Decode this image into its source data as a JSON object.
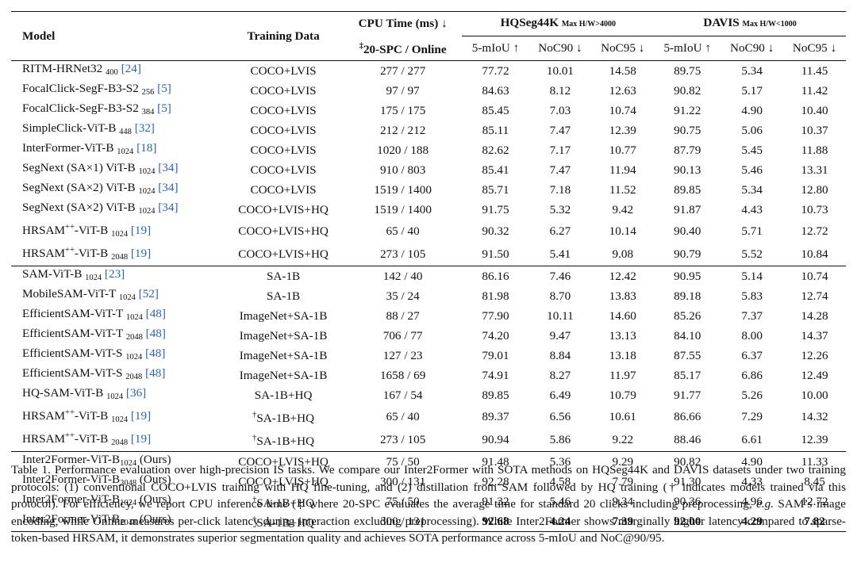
{
  "header": {
    "model": "Model",
    "training_data": "Training Data",
    "cpu_time": "CPU Time (ms) ↓",
    "cpu_sub_mark": "‡",
    "cpu_sub": "20-SPC / Online",
    "hq_name": "HQSeg44K",
    "hq_sub": "Max H/W>4000",
    "davis_name": "DAVIS",
    "davis_sub": "Max H/W<1000",
    "metrics": [
      "5-mIoU ↑",
      "NoC90 ↓",
      "NoC95 ↓",
      "5-mIoU ↑",
      "NoC90 ↓",
      "NoC95 ↓"
    ]
  },
  "groups": [
    {
      "rows": [
        {
          "m": "RITM-HRNet32 ",
          "sub": "400",
          "tail": " ",
          "cite": "[24]",
          "data": "COCO+LVIS",
          "cpu": "277 / 277",
          "v": [
            "77.72",
            "10.01",
            "14.58",
            "89.75",
            "5.34",
            "11.45"
          ]
        },
        {
          "m": "FocalClick-SegF-B3-S2 ",
          "sub": "256",
          "tail": " ",
          "cite": "[5]",
          "data": "COCO+LVIS",
          "cpu": "97 / 97",
          "v": [
            "84.63",
            "8.12",
            "12.63",
            "90.82",
            "5.17",
            "11.42"
          ]
        },
        {
          "m": "FocalClick-SegF-B3-S2 ",
          "sub": "384",
          "tail": " ",
          "cite": "[5]",
          "data": "COCO+LVIS",
          "cpu": "175 / 175",
          "v": [
            "85.45",
            "7.03",
            "10.74",
            "91.22",
            "4.90",
            "10.40"
          ]
        },
        {
          "m": "SimpleClick-ViT-B ",
          "sub": "448",
          "tail": " ",
          "cite": "[32]",
          "data": "COCO+LVIS",
          "cpu": "212 / 212",
          "v": [
            "85.11",
            "7.47",
            "12.39",
            "90.75",
            "5.06",
            "10.37"
          ]
        },
        {
          "m": "InterFormer-ViT-B ",
          "sub": "1024",
          "tail": " ",
          "cite": "[18]",
          "data": "COCO+LVIS",
          "cpu": "1020 / 188",
          "v": [
            "82.62",
            "7.17",
            "10.77",
            "87.79",
            "5.45",
            "11.88"
          ]
        },
        {
          "m": "SegNext (SA×1) ViT-B ",
          "sub": "1024",
          "tail": " ",
          "cite": "[34]",
          "data": "COCO+LVIS",
          "cpu": "910 / 803",
          "v": [
            "85.41",
            "7.47",
            "11.94",
            "90.13",
            "5.46",
            "13.31"
          ]
        },
        {
          "m": "SegNext (SA×2) ViT-B ",
          "sub": "1024",
          "tail": " ",
          "cite": "[34]",
          "data": "COCO+LVIS",
          "cpu": "1519 / 1400",
          "v": [
            "85.71",
            "7.18",
            "11.52",
            "89.85",
            "5.34",
            "12.80"
          ]
        },
        {
          "m": "SegNext (SA×2) ViT-B ",
          "sub": "1024",
          "tail": " ",
          "cite": "[34]",
          "data": "COCO+LVIS+HQ",
          "cpu": "1519 / 1400",
          "v": [
            "91.75",
            "5.32",
            "9.42",
            "91.87",
            "4.43",
            "10.73"
          ]
        },
        {
          "m": "HRSAM",
          "sup": "++",
          "m2": "-ViT-B ",
          "sub": "1024",
          "tail": " ",
          "cite": "[19]",
          "data": "COCO+LVIS+HQ",
          "cpu": "65 / 40",
          "v": [
            "90.32",
            "6.27",
            "10.14",
            "90.40",
            "5.71",
            "12.72"
          ]
        },
        {
          "m": "HRSAM",
          "sup": "++",
          "m2": "-ViT-B ",
          "sub": "2048",
          "tail": " ",
          "cite": "[19]",
          "data": "COCO+LVIS+HQ",
          "cpu": "273 / 105",
          "v": [
            "91.50",
            "5.41",
            "9.08",
            "90.79",
            "5.52",
            "10.84"
          ]
        }
      ]
    },
    {
      "rows": [
        {
          "m": "SAM-ViT-B ",
          "sub": "1024",
          "tail": " ",
          "cite": "[23]",
          "data": "SA-1B",
          "cpu": "142 / 40",
          "v": [
            "86.16",
            "7.46",
            "12.42",
            "90.95",
            "5.14",
            "10.74"
          ]
        },
        {
          "m": "MobileSAM-ViT-T ",
          "sub": "1024",
          "tail": " ",
          "cite": "[52]",
          "data": "SA-1B",
          "cpu": "35 / 24",
          "v": [
            "81.98",
            "8.70",
            "13.83",
            "89.18",
            "5.83",
            "12.74"
          ]
        },
        {
          "m": "EfficientSAM-ViT-T ",
          "sub": "1024",
          "tail": " ",
          "cite": "[48]",
          "data": "ImageNet+SA-1B",
          "cpu": "88 / 27",
          "v": [
            "77.90",
            "10.11",
            "14.60",
            "85.26",
            "7.37",
            "14.28"
          ]
        },
        {
          "m": "EfficientSAM-ViT-T ",
          "sub": "2048",
          "tail": " ",
          "cite": "[48]",
          "data": "ImageNet+SA-1B",
          "cpu": "706 / 77",
          "v": [
            "74.20",
            "9.47",
            "13.13",
            "84.10",
            "8.00",
            "14.37"
          ]
        },
        {
          "m": "EfficientSAM-ViT-S ",
          "sub": "1024",
          "tail": " ",
          "cite": "[48]",
          "data": "ImageNet+SA-1B",
          "cpu": "127 / 23",
          "v": [
            "79.01",
            "8.84",
            "13.18",
            "87.55",
            "6.37",
            "12.26"
          ]
        },
        {
          "m": "EfficientSAM-ViT-S ",
          "sub": "2048",
          "tail": " ",
          "cite": "[48]",
          "data": "ImageNet+SA-1B",
          "cpu": "1658 / 69",
          "v": [
            "74.91",
            "8.27",
            "11.97",
            "85.17",
            "6.86",
            "12.49"
          ]
        },
        {
          "m": "HQ-SAM-ViT-B ",
          "sub": "1024",
          "tail": " ",
          "cite": "[36]",
          "data": "SA-1B+HQ",
          "cpu": "167 / 54",
          "v": [
            "89.85",
            "6.49",
            "10.79",
            "91.77",
            "5.26",
            "10.00"
          ]
        },
        {
          "m": "HRSAM",
          "sup": "++",
          "m2": "-ViT-B ",
          "sub": "1024",
          "tail": " ",
          "cite": "[19]",
          "dmark": "†",
          "data": "SA-1B+HQ",
          "cpu": "65 / 40",
          "v": [
            "89.37",
            "6.56",
            "10.61",
            "86.66",
            "7.29",
            "14.32"
          ]
        },
        {
          "m": "HRSAM",
          "sup": "++",
          "m2": "-ViT-B ",
          "sub": "2048",
          "tail": " ",
          "cite": "[19]",
          "dmark": "†",
          "data": "SA-1B+HQ",
          "cpu": "273 / 105",
          "v": [
            "90.94",
            "5.86",
            "9.22",
            "88.46",
            "6.61",
            "12.39"
          ]
        }
      ]
    },
    {
      "rows": [
        {
          "m": "Inter2Former-ViT-B",
          "sub": "1024",
          "tail": " (Ours)",
          "data": "COCO+LVIS+HQ",
          "cpu": "75 / 50",
          "v": [
            "91.48",
            "5.36",
            "9.29",
            "90.82",
            "4.90",
            "11.33"
          ]
        },
        {
          "m": "Inter2Former-ViT-B",
          "sub": "2048",
          "tail": " (Ours)",
          "data": "COCO+LVIS+HQ",
          "cpu": "300 / 131",
          "v": [
            "92.28",
            "4.58",
            "7.79",
            "91.30",
            "4.33",
            "8.45"
          ]
        },
        {
          "m": "Inter2Former-ViT-B",
          "sub": "1024",
          "tail": " (Ours)",
          "dmark": "†",
          "data": "SA-1B+HQ",
          "cpu": "75 / 50",
          "v": [
            "91.32",
            "5.46",
            "9.34",
            "90.36",
            "4.96",
            "12.72"
          ]
        },
        {
          "m": "Inter2Former-ViT-B",
          "sub": "2048",
          "tail": " (Ours)",
          "dmark": "†",
          "data": "SA-1B+HQ",
          "cpu": "300 / 131",
          "v": [
            "92.68",
            "4.24",
            "7.39",
            "92.00",
            "4.29",
            "7.82"
          ],
          "bold": [
            true,
            true,
            true,
            true,
            true,
            true
          ]
        }
      ]
    }
  ],
  "caption": {
    "p1": "Table 1.  Performance evaluation over high-precision IS tasks. We compare our Inter2Former with SOTA methods on HQSeg44K and DAVIS datasets under two training protocols: (1) conventional COCO+LVIS training with HQ fine-tuning, and (2) distillation from SAM followed by HQ training († indicates models trained via this protocol). For efficiency, we report CPU inference time (‡ where 20-SPC evaluates the average time for standard 20 clicks including preprocessing, ",
    "eg": "e.g.",
    "p2": " SAM’s image encoding, while Online measures per-click latency during interaction excluding preprocessing). While Inter2Former shows marginally higher latency compared to sparse-token-based HRSAM, it demonstrates superior segmentation quality and achieves SOTA performance across 5-mIoU and NoC@90/95."
  }
}
